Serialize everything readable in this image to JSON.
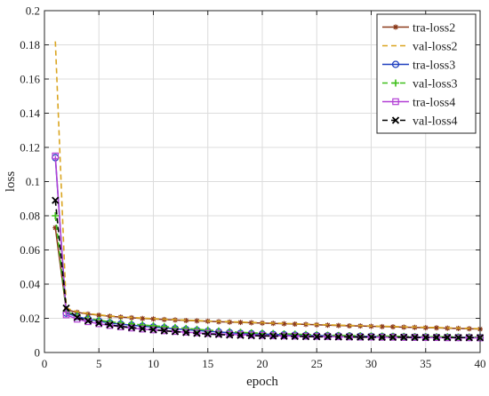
{
  "chart_data": {
    "type": "line",
    "title": "",
    "xlabel": "epoch",
    "ylabel": "loss",
    "xlim": [
      0,
      40
    ],
    "ylim": [
      0,
      0.2
    ],
    "xticks": [
      "0",
      "5",
      "10",
      "15",
      "20",
      "25",
      "30",
      "35",
      "40"
    ],
    "yticks": [
      "0",
      "0.02",
      "0.04",
      "0.06",
      "0.08",
      "0.1",
      "0.12",
      "0.14",
      "0.16",
      "0.18",
      "0.2"
    ],
    "grid": true,
    "legend_position": "top-right",
    "x": [
      1,
      2,
      3,
      4,
      5,
      6,
      7,
      8,
      9,
      10,
      11,
      12,
      13,
      14,
      15,
      16,
      17,
      18,
      19,
      20,
      21,
      22,
      23,
      24,
      25,
      26,
      27,
      28,
      29,
      30,
      31,
      32,
      33,
      34,
      35,
      36,
      37,
      38,
      39,
      40
    ],
    "series": [
      {
        "name": "tra-loss2",
        "color": "#8B3A1A",
        "dash": "solid",
        "marker": "asterisk",
        "values": [
          0.073,
          0.025,
          0.0235,
          0.0225,
          0.0218,
          0.0212,
          0.0207,
          0.0203,
          0.0199,
          0.0196,
          0.0193,
          0.019,
          0.0187,
          0.0185,
          0.0183,
          0.018,
          0.0178,
          0.0176,
          0.0174,
          0.0172,
          0.017,
          0.0168,
          0.0166,
          0.0164,
          0.0162,
          0.016,
          0.0158,
          0.0156,
          0.0155,
          0.0153,
          0.0151,
          0.015,
          0.0148,
          0.0147,
          0.0145,
          0.0144,
          0.0142,
          0.0141,
          0.0139,
          0.0137
        ]
      },
      {
        "name": "val-loss2",
        "color": "#DAA520",
        "dash": "dashed",
        "marker": "none",
        "values": [
          0.182,
          0.026,
          0.0238,
          0.0228,
          0.022,
          0.0214,
          0.0209,
          0.0205,
          0.0201,
          0.0198,
          0.0195,
          0.0192,
          0.0189,
          0.0187,
          0.0184,
          0.0182,
          0.018,
          0.0178,
          0.0176,
          0.0174,
          0.0172,
          0.017,
          0.0168,
          0.0166,
          0.0164,
          0.0162,
          0.016,
          0.0158,
          0.0157,
          0.0155,
          0.0153,
          0.0152,
          0.015,
          0.0149,
          0.0147,
          0.0146,
          0.0144,
          0.0143,
          0.0141,
          0.0139
        ]
      },
      {
        "name": "tra-loss3",
        "color": "#1F3FBF",
        "dash": "solid",
        "marker": "circle",
        "values": [
          0.114,
          0.023,
          0.021,
          0.0195,
          0.0183,
          0.0173,
          0.0166,
          0.016,
          0.0154,
          0.0149,
          0.0144,
          0.0139,
          0.0134,
          0.0129,
          0.0124,
          0.012,
          0.0116,
          0.0112,
          0.011,
          0.0108,
          0.0106,
          0.0104,
          0.0102,
          0.01,
          0.0099,
          0.0098,
          0.0097,
          0.0096,
          0.0095,
          0.0094,
          0.0093,
          0.0092,
          0.0091,
          0.009,
          0.009,
          0.0089,
          0.0089,
          0.0088,
          0.0088,
          0.0087
        ]
      },
      {
        "name": "val-loss3",
        "color": "#3EBF1A",
        "dash": "dashed",
        "marker": "plus",
        "values": [
          0.08,
          0.024,
          0.0215,
          0.02,
          0.0189,
          0.018,
          0.0173,
          0.0167,
          0.0161,
          0.0156,
          0.0151,
          0.0146,
          0.0141,
          0.0136,
          0.0131,
          0.0126,
          0.0122,
          0.0118,
          0.0115,
          0.0113,
          0.0111,
          0.0109,
          0.0107,
          0.0105,
          0.0103,
          0.0101,
          0.01,
          0.0099,
          0.0098,
          0.0097,
          0.0096,
          0.0095,
          0.0094,
          0.0093,
          0.0093,
          0.0092,
          0.0092,
          0.0091,
          0.0091,
          0.009
        ]
      },
      {
        "name": "tra-loss4",
        "color": "#B23FD6",
        "dash": "solid",
        "marker": "square",
        "values": [
          0.115,
          0.022,
          0.0195,
          0.018,
          0.0168,
          0.0158,
          0.015,
          0.0143,
          0.0137,
          0.0132,
          0.0127,
          0.0123,
          0.0119,
          0.0115,
          0.0112,
          0.0109,
          0.0106,
          0.0104,
          0.0102,
          0.01,
          0.0098,
          0.0097,
          0.0096,
          0.0095,
          0.0094,
          0.0093,
          0.0092,
          0.0091,
          0.009,
          0.009,
          0.0089,
          0.0089,
          0.0088,
          0.0088,
          0.0087,
          0.0087,
          0.0086,
          0.0086,
          0.0086,
          0.0085
        ]
      },
      {
        "name": "val-loss4",
        "color": "#000000",
        "dash": "dashed",
        "marker": "x",
        "values": [
          0.089,
          0.026,
          0.0205,
          0.0185,
          0.0172,
          0.0162,
          0.0153,
          0.0146,
          0.0139,
          0.0133,
          0.0127,
          0.0122,
          0.0117,
          0.0112,
          0.0108,
          0.0105,
          0.0102,
          0.01,
          0.0098,
          0.0097,
          0.0096,
          0.0095,
          0.0094,
          0.0093,
          0.0092,
          0.0092,
          0.0091,
          0.0091,
          0.009,
          0.009,
          0.0089,
          0.0089,
          0.0089,
          0.0088,
          0.0088,
          0.0088,
          0.0088,
          0.0087,
          0.0087,
          0.0087
        ]
      }
    ]
  }
}
